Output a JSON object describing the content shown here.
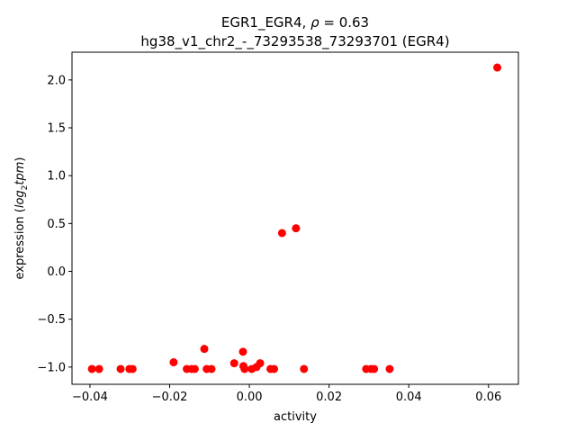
{
  "chart_data": {
    "type": "scatter",
    "title_line1": "EGR1_EGR4, ",
    "title_rho": "ρ",
    "title_eq": " = 0.63",
    "title_line2": "hg38_v1_chr2_-_73293538_73293701 (EGR4)",
    "xlabel": "activity",
    "ylabel_prefix": "expression (",
    "ylabel_log": "log",
    "ylabel_sub": "2",
    "ylabel_tpm": "tpm",
    "ylabel_suffix": ")",
    "xlim": [
      -0.0445,
      0.0675
    ],
    "ylim": [
      -1.18,
      2.29
    ],
    "xticks": [
      -0.04,
      -0.02,
      0.0,
      0.02,
      0.04,
      0.06
    ],
    "xtick_labels": [
      "−0.04",
      "−0.02",
      "0.00",
      "0.02",
      "0.04",
      "0.06"
    ],
    "yticks": [
      -1.0,
      -0.5,
      0.0,
      0.5,
      1.0,
      1.5,
      2.0
    ],
    "ytick_labels": [
      "−1.0",
      "−0.5",
      "0.0",
      "0.5",
      "1.0",
      "1.5",
      "2.0"
    ],
    "grid": false,
    "marker_color": "#ff0000",
    "points": [
      {
        "x": -0.0395,
        "y": -1.02
      },
      {
        "x": -0.0377,
        "y": -1.02
      },
      {
        "x": -0.0323,
        "y": -1.02
      },
      {
        "x": -0.0301,
        "y": -1.02
      },
      {
        "x": -0.0293,
        "y": -1.02
      },
      {
        "x": -0.019,
        "y": -0.95
      },
      {
        "x": -0.0157,
        "y": -1.02
      },
      {
        "x": -0.0145,
        "y": -1.02
      },
      {
        "x": -0.0137,
        "y": -1.02
      },
      {
        "x": -0.0113,
        "y": -0.81
      },
      {
        "x": -0.0107,
        "y": -1.02
      },
      {
        "x": -0.0095,
        "y": -1.02
      },
      {
        "x": -0.0038,
        "y": -0.96
      },
      {
        "x": -0.0016,
        "y": -0.84
      },
      {
        "x": -0.0015,
        "y": -0.99
      },
      {
        "x": -0.0012,
        "y": -1.02
      },
      {
        "x": 0.0006,
        "y": -1.02
      },
      {
        "x": 0.0018,
        "y": -1.0
      },
      {
        "x": 0.0027,
        "y": -0.96
      },
      {
        "x": 0.0053,
        "y": -1.02
      },
      {
        "x": 0.0062,
        "y": -1.02
      },
      {
        "x": 0.0082,
        "y": 0.4
      },
      {
        "x": 0.0117,
        "y": 0.45
      },
      {
        "x": 0.0137,
        "y": -1.02
      },
      {
        "x": 0.0293,
        "y": -1.02
      },
      {
        "x": 0.0305,
        "y": -1.02
      },
      {
        "x": 0.0313,
        "y": -1.02
      },
      {
        "x": 0.0352,
        "y": -1.02
      },
      {
        "x": 0.0622,
        "y": 2.13
      }
    ]
  }
}
